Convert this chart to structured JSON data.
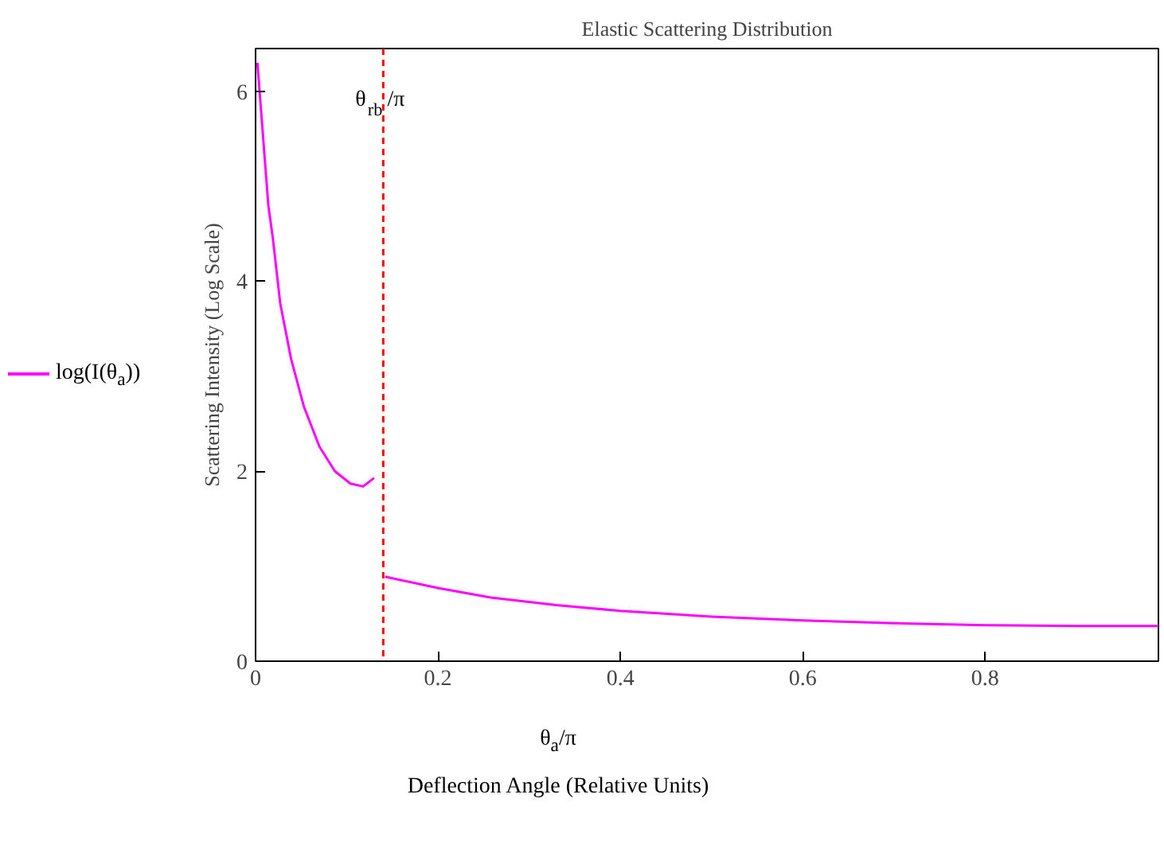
{
  "chart_data": {
    "type": "line",
    "title": "Elastic Scattering Distribution",
    "xlabel": "Deflection Angle (Relative Units)",
    "ylabel": "Scattering Intensity (Log Scale)",
    "annotations": [
      "θ$_{a}$/π"
    ],
    "series": [
      {
        "name": "log(I(θ$_{a}$))",
        "color": "#ff00ff",
        "x": [
          0.002,
          0.006,
          0.01,
          0.014,
          0.019,
          0.027,
          0.039,
          0.053,
          0.07,
          0.087,
          0.104,
          0.118,
          0.13,
          0.136,
          0.142,
          0.2,
          0.258,
          0.33,
          0.4,
          0.5,
          0.6,
          0.7,
          0.8,
          0.9,
          0.99
        ],
        "values": [
          6.3,
          5.8,
          5.3,
          4.8,
          4.45,
          3.77,
          3.18,
          2.68,
          2.26,
          2.0,
          1.87,
          1.84,
          1.93,
          null,
          0.89,
          0.77,
          0.67,
          0.59,
          0.53,
          0.47,
          0.43,
          0.4,
          0.38,
          0.37,
          0.37
        ]
      }
    ],
    "ref_lines": [
      {
        "axis": "x",
        "value": 0.14,
        "label": "θ$_{rb}$/π",
        "color": "#ff0000",
        "line_style": "dashed"
      }
    ],
    "xlim": [
      0,
      0.99
    ],
    "ylim": [
      0,
      6.45
    ],
    "xticks": [
      0,
      0.2,
      0.4,
      0.6,
      0.8
    ],
    "yticks": [
      0,
      2,
      4,
      6
    ],
    "grid": false,
    "legend": "left",
    "marker": "none",
    "line_style": "solid"
  }
}
